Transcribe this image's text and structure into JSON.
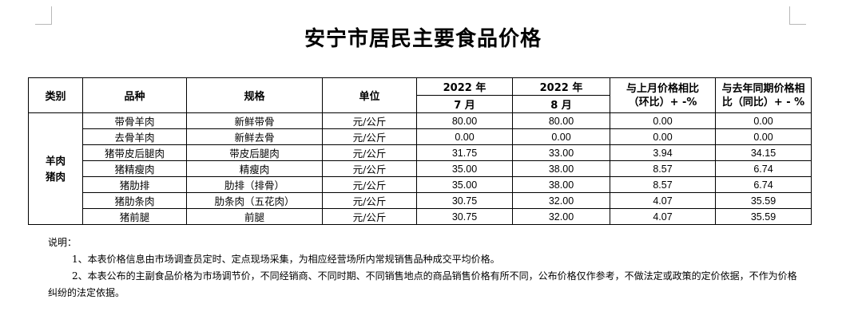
{
  "title": "安宁市居民主要食品价格",
  "headers": {
    "category": "类别",
    "item": "品种",
    "spec": "规格",
    "unit": "单位",
    "year_a": "2022 年",
    "month_a": "7 月",
    "year_b": "2022 年",
    "month_b": "8 月",
    "mom_line1": "与上月价格相比",
    "mom_line2": "（环比）+ -%",
    "yoy_line1": "与去年同期价格相",
    "yoy_line2": "比（同比）+ - %"
  },
  "category": {
    "line1": "羊肉",
    "line2": "猪肉"
  },
  "rows": [
    {
      "item": "带骨羊肉",
      "spec": "新鲜带骨",
      "unit": "元/公斤",
      "jul": "80.00",
      "aug": "80.00",
      "mom": "0.00",
      "yoy": "0.00"
    },
    {
      "item": "去骨羊肉",
      "spec": "新鲜去骨",
      "unit": "元/公斤",
      "jul": "0.00",
      "aug": "0.00",
      "mom": "0.00",
      "yoy": "0.00"
    },
    {
      "item": "猪带皮后腿肉",
      "spec": "带皮后腿肉",
      "unit": "元/公斤",
      "jul": "31.75",
      "aug": "33.00",
      "mom": "3.94",
      "yoy": "34.15"
    },
    {
      "item": "猪精瘦肉",
      "spec": "精瘦肉",
      "unit": "元/公斤",
      "jul": "35.00",
      "aug": "38.00",
      "mom": "8.57",
      "yoy": "6.74"
    },
    {
      "item": "猪肋排",
      "spec": "肋排（排骨）",
      "unit": "元/公斤",
      "jul": "35.00",
      "aug": "38.00",
      "mom": "8.57",
      "yoy": "6.74"
    },
    {
      "item": "猪肋条肉",
      "spec": "肋条肉（五花肉）",
      "unit": "元/公斤",
      "jul": "30.75",
      "aug": "32.00",
      "mom": "4.07",
      "yoy": "35.59"
    },
    {
      "item": "猪前腿",
      "spec": "前腿",
      "unit": "元/公斤",
      "jul": "30.75",
      "aug": "32.00",
      "mom": "4.07",
      "yoy": "35.59"
    }
  ],
  "notes": {
    "heading": "说明：",
    "note1": "1、本表价格信息由市场调查员定时、定点现场采集，为相应经营场所内常规销售品种成交平均价格。",
    "note2": "2、本表公布的主副食品价格为市场调节价，不同经销商、不同时期、不同销售地点的商品销售价格有所不同，公布价格仅作参考，不做法定或政策的定价依据，不作为价格纠纷的法定依据。"
  }
}
